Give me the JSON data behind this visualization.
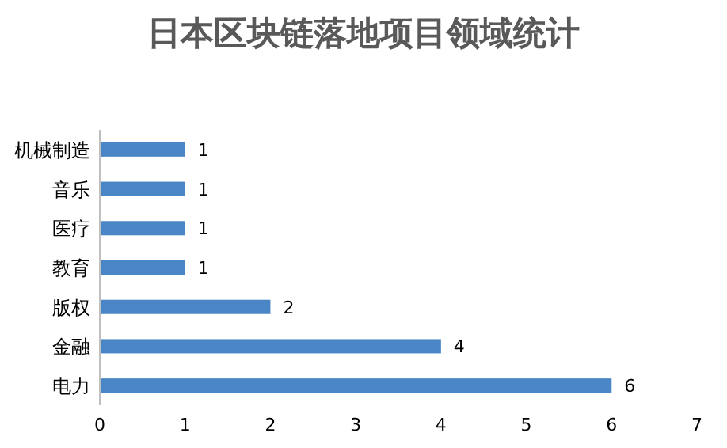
{
  "chart_data": {
    "type": "bar",
    "orientation": "horizontal",
    "title": "日本区块链落地项目领域统计",
    "categories": [
      "机械制造",
      "音乐",
      "医疗",
      "教育",
      "版权",
      "金融",
      "电力"
    ],
    "values": [
      1,
      1,
      1,
      1,
      2,
      4,
      6
    ],
    "color": "#4a86c5",
    "xlim": [
      0,
      7
    ],
    "xticks": [
      0,
      1,
      2,
      3,
      4,
      5,
      6,
      7
    ],
    "data_labels": true
  }
}
